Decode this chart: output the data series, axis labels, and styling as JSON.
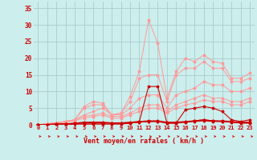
{
  "xlabel": "Vent moyen/en rafales ( km/h )",
  "xlim": [
    -0.5,
    23.5
  ],
  "ylim": [
    0,
    37
  ],
  "yticks": [
    0,
    5,
    10,
    15,
    20,
    25,
    30,
    35
  ],
  "xticks": [
    0,
    1,
    2,
    3,
    4,
    5,
    6,
    7,
    8,
    9,
    10,
    11,
    12,
    13,
    14,
    15,
    16,
    17,
    18,
    19,
    20,
    21,
    22,
    23
  ],
  "bg_color": "#cceeed",
  "grid_color": "#aacccc",
  "tick_color": "#cc0000",
  "series_light": [
    [
      0,
      0.3,
      0.6,
      1.0,
      1.5,
      5.5,
      7.0,
      6.5,
      3.0,
      3.5,
      8.5,
      16.0,
      31.5,
      24.5,
      8.0,
      16.0,
      20.0,
      19.0,
      21.0,
      19.0,
      18.5,
      14.0,
      14.0,
      15.5
    ],
    [
      0,
      0.3,
      0.6,
      1.0,
      1.5,
      5.0,
      6.0,
      6.0,
      3.0,
      3.5,
      7.0,
      14.0,
      15.0,
      15.0,
      7.0,
      15.0,
      17.0,
      17.0,
      19.0,
      17.0,
      17.0,
      13.0,
      13.0,
      14.0
    ],
    [
      0,
      0.3,
      0.6,
      1.0,
      1.5,
      3.0,
      4.0,
      5.0,
      3.0,
      3.0,
      5.0,
      8.0,
      9.0,
      9.0,
      5.0,
      9.0,
      10.0,
      11.0,
      13.0,
      12.0,
      12.0,
      10.0,
      10.0,
      11.0
    ],
    [
      0,
      0.3,
      0.6,
      1.0,
      1.5,
      2.5,
      3.0,
      3.5,
      2.5,
      2.5,
      3.5,
      5.0,
      6.0,
      6.0,
      4.0,
      6.0,
      7.0,
      8.0,
      9.0,
      8.0,
      8.0,
      7.0,
      7.0,
      8.0
    ],
    [
      0,
      0.2,
      0.5,
      0.8,
      1.2,
      2.0,
      2.5,
      3.0,
      2.0,
      2.0,
      3.0,
      4.0,
      5.0,
      5.0,
      3.5,
      5.0,
      6.0,
      6.5,
      7.5,
      7.0,
      7.0,
      6.0,
      6.0,
      7.0
    ]
  ],
  "series_dark": [
    [
      0,
      0,
      0,
      0,
      0.2,
      0.2,
      0.2,
      0.2,
      0.2,
      0.2,
      0.5,
      1.0,
      11.5,
      11.5,
      0.5,
      0.5,
      4.5,
      5.0,
      5.5,
      5.0,
      4.0,
      1.5,
      1.0,
      1.5
    ],
    [
      0,
      0.1,
      0.2,
      0.3,
      0.4,
      0.5,
      0.5,
      0.5,
      0.5,
      0.5,
      0.5,
      0.8,
      1.0,
      1.0,
      0.5,
      0.5,
      0.8,
      1.2,
      1.5,
      1.2,
      1.0,
      0.8,
      0.5,
      0.5
    ],
    [
      0,
      0.1,
      0.2,
      0.3,
      0.4,
      0.6,
      0.6,
      0.6,
      0.5,
      0.5,
      0.6,
      0.8,
      1.0,
      1.0,
      0.6,
      0.6,
      0.8,
      1.0,
      1.2,
      1.0,
      1.0,
      0.8,
      0.6,
      0.6
    ],
    [
      0,
      0.1,
      0.2,
      0.3,
      0.5,
      0.8,
      0.8,
      0.8,
      0.6,
      0.6,
      0.8,
      1.0,
      1.2,
      1.2,
      0.8,
      0.8,
      1.0,
      1.2,
      1.5,
      1.2,
      1.2,
      1.0,
      0.8,
      0.8
    ]
  ],
  "light_color": "#ff9999",
  "dark_color": "#cc0000"
}
